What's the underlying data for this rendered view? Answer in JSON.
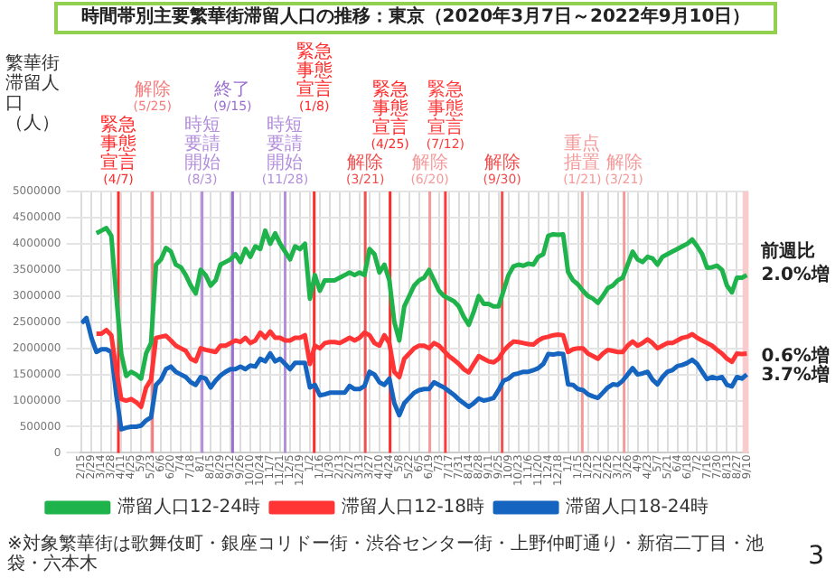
{
  "chart_data": {
    "type": "line",
    "title": "時間帯別主要繁華街滞留人口の推移：東京（2020年3月7日～2022年9月10日）",
    "ylabel": "繁華街滞留人口（人）",
    "x": [
      "2020-02-15",
      "2020-02-22",
      "2020-02-29",
      "2020-03-07",
      "2020-03-14",
      "2020-03-21",
      "2020-03-28",
      "2020-04-04",
      "2020-04-11",
      "2020-04-18",
      "2020-04-25",
      "2020-05-02",
      "2020-05-09",
      "2020-05-16",
      "2020-05-23",
      "2020-05-30",
      "2020-06-06",
      "2020-06-13",
      "2020-06-20",
      "2020-06-27",
      "2020-07-04",
      "2020-07-11",
      "2020-07-18",
      "2020-07-25",
      "2020-08-01",
      "2020-08-08",
      "2020-08-15",
      "2020-08-22",
      "2020-08-29",
      "2020-09-05",
      "2020-09-12",
      "2020-09-19",
      "2020-09-26",
      "2020-10-03",
      "2020-10-10",
      "2020-10-17",
      "2020-10-24",
      "2020-10-31",
      "2020-11-07",
      "2020-11-14",
      "2020-11-21",
      "2020-11-28",
      "2020-12-05",
      "2020-12-12",
      "2020-12-19",
      "2020-12-26",
      "2021-01-02",
      "2021-01-09",
      "2021-01-16",
      "2021-01-23",
      "2021-01-30",
      "2021-02-06",
      "2021-02-13",
      "2021-02-20",
      "2021-02-27",
      "2021-03-06",
      "2021-03-13",
      "2021-03-20",
      "2021-03-27",
      "2021-04-03",
      "2021-04-10",
      "2021-04-17",
      "2021-04-24",
      "2021-05-01",
      "2021-05-08",
      "2021-05-15",
      "2021-05-22",
      "2021-05-29",
      "2021-06-05",
      "2021-06-12",
      "2021-06-19",
      "2021-06-26",
      "2021-07-03",
      "2021-07-10",
      "2021-07-17",
      "2021-07-24",
      "2021-07-31",
      "2021-08-07",
      "2021-08-14",
      "2021-08-21",
      "2021-08-28",
      "2021-09-04",
      "2021-09-11",
      "2021-09-18",
      "2021-09-25",
      "2021-10-02",
      "2021-10-09",
      "2021-10-16",
      "2021-10-23",
      "2021-10-30",
      "2021-11-06",
      "2021-11-13",
      "2021-11-20",
      "2021-11-27",
      "2021-12-04",
      "2021-12-11",
      "2021-12-18",
      "2021-12-25",
      "2022-01-01",
      "2022-01-08",
      "2022-01-15",
      "2022-01-22",
      "2022-01-29",
      "2022-02-05",
      "2022-02-12",
      "2022-02-19",
      "2022-02-26",
      "2022-03-05",
      "2022-03-12",
      "2022-03-19",
      "2022-03-26",
      "2022-04-02",
      "2022-04-09",
      "2022-04-16",
      "2022-04-23",
      "2022-04-30",
      "2022-05-07",
      "2022-05-14",
      "2022-05-21",
      "2022-05-28",
      "2022-06-04",
      "2022-06-11",
      "2022-06-18",
      "2022-06-25",
      "2022-07-02",
      "2022-07-09",
      "2022-07-16",
      "2022-07-23",
      "2022-07-30",
      "2022-08-06",
      "2022-08-13",
      "2022-08-20",
      "2022-08-27",
      "2022-09-03",
      "2022-09-10"
    ],
    "series": [
      {
        "name": "滞留人口12-24時",
        "color": "#1fb34b",
        "values": [
          null,
          null,
          null,
          4200000,
          4250000,
          4300000,
          4150000,
          3000000,
          1900000,
          1470000,
          1550000,
          1500000,
          1420000,
          1900000,
          2100000,
          3600000,
          3700000,
          3920000,
          3850000,
          3600000,
          3550000,
          3400000,
          3200000,
          3050000,
          3500000,
          3400000,
          3200000,
          3300000,
          3600000,
          3650000,
          3700000,
          3800000,
          3650000,
          3900000,
          3750000,
          3950000,
          3900000,
          4250000,
          4000000,
          4200000,
          4000000,
          3850000,
          3700000,
          3950000,
          3900000,
          4000000,
          2950000,
          3400000,
          3100000,
          3300000,
          3300000,
          3300000,
          3350000,
          3400000,
          3450000,
          3400000,
          3450000,
          3400000,
          3900000,
          3800000,
          3450000,
          3600000,
          3300000,
          2500000,
          2150000,
          2800000,
          3000000,
          3200000,
          3300000,
          3350000,
          3500000,
          3300000,
          3100000,
          3000000,
          2950000,
          2900000,
          2800000,
          2600000,
          2450000,
          2700000,
          3000000,
          2850000,
          2850000,
          2800000,
          2800000,
          3100000,
          3400000,
          3570000,
          3600000,
          3580000,
          3620000,
          3600000,
          3750000,
          3800000,
          4150000,
          4180000,
          4170000,
          4180000,
          3460000,
          3300000,
          3220000,
          3100000,
          3000000,
          2950000,
          2870000,
          3000000,
          3150000,
          3200000,
          3300000,
          3350000,
          3600000,
          3850000,
          3700000,
          3650000,
          3750000,
          3720000,
          3600000,
          3750000,
          3800000,
          3850000,
          3900000,
          3950000,
          4000000,
          4080000,
          3950000,
          3800000,
          3540000,
          3550000,
          3580000,
          3500000,
          3200000,
          3070000,
          3350000,
          3350000,
          3400000
        ]
      },
      {
        "name": "滞留人口12-18時",
        "color": "#ff3535",
        "values": [
          null,
          null,
          null,
          2280000,
          2280000,
          2350000,
          2250000,
          1580000,
          1030000,
          1000000,
          1030000,
          970000,
          880000,
          1250000,
          1400000,
          2200000,
          2220000,
          2240000,
          2150000,
          2050000,
          2000000,
          1950000,
          1800000,
          1750000,
          2000000,
          1970000,
          1950000,
          1930000,
          2050000,
          2050000,
          2100000,
          2150000,
          2120000,
          2200000,
          2100000,
          2150000,
          2300000,
          2200000,
          2320000,
          2200000,
          2200000,
          2150000,
          2150000,
          2200000,
          2200000,
          2250000,
          1700000,
          2050000,
          2000000,
          2100000,
          2120000,
          2120000,
          2100000,
          2150000,
          2200000,
          2150000,
          2200000,
          2300000,
          2250000,
          2100000,
          2050000,
          2250000,
          2100000,
          1550000,
          1450000,
          1800000,
          1900000,
          2000000,
          2050000,
          2050000,
          2000000,
          2100000,
          2050000,
          1950000,
          1850000,
          1780000,
          1700000,
          1600000,
          1540000,
          1700000,
          1850000,
          1800000,
          1750000,
          1730000,
          1800000,
          1950000,
          2050000,
          2130000,
          2120000,
          2100000,
          2080000,
          2070000,
          2150000,
          2200000,
          2220000,
          2250000,
          2260000,
          2250000,
          1930000,
          1980000,
          2000000,
          2000000,
          1900000,
          1850000,
          1800000,
          1900000,
          1970000,
          1950000,
          1930000,
          1930000,
          2050000,
          2130000,
          2050000,
          2100000,
          2170000,
          2100000,
          2000000,
          2050000,
          2100000,
          2100000,
          2150000,
          2200000,
          2220000,
          2270000,
          2200000,
          2150000,
          2100000,
          2050000,
          1970000,
          1900000,
          1800000,
          1740000,
          1900000,
          1890000,
          1900000
        ]
      },
      {
        "name": "滞留人口18-24時",
        "color": "#1565c0",
        "values": [
          2480000,
          2580000,
          2200000,
          1930000,
          1980000,
          1980000,
          1930000,
          1100000,
          450000,
          480000,
          500000,
          500000,
          520000,
          620000,
          680000,
          1300000,
          1400000,
          1600000,
          1650000,
          1550000,
          1500000,
          1450000,
          1350000,
          1300000,
          1450000,
          1420000,
          1250000,
          1380000,
          1480000,
          1550000,
          1600000,
          1600000,
          1650000,
          1600000,
          1670000,
          1650000,
          1800000,
          1750000,
          1900000,
          1750000,
          1800000,
          1700000,
          1600000,
          1720000,
          1720000,
          1720000,
          1250000,
          1300000,
          1100000,
          1120000,
          1150000,
          1150000,
          1150000,
          1150000,
          1280000,
          1220000,
          1220000,
          1280000,
          1550000,
          1500000,
          1350000,
          1300000,
          1420000,
          950000,
          720000,
          950000,
          1050000,
          1150000,
          1200000,
          1220000,
          1220000,
          1350000,
          1300000,
          1250000,
          1180000,
          1110000,
          1020000,
          950000,
          880000,
          950000,
          1040000,
          1000000,
          1020000,
          1050000,
          1200000,
          1380000,
          1420000,
          1500000,
          1520000,
          1550000,
          1550000,
          1580000,
          1620000,
          1700000,
          1890000,
          1880000,
          1900000,
          1890000,
          1310000,
          1300000,
          1220000,
          1200000,
          1120000,
          1080000,
          1050000,
          1150000,
          1250000,
          1310000,
          1300000,
          1380000,
          1500000,
          1620000,
          1500000,
          1520000,
          1550000,
          1400000,
          1310000,
          1450000,
          1550000,
          1580000,
          1660000,
          1680000,
          1720000,
          1780000,
          1700000,
          1550000,
          1410000,
          1450000,
          1420000,
          1450000,
          1300000,
          1270000,
          1450000,
          1420000,
          1500000
        ]
      }
    ],
    "xlim": [
      "2020-02-14",
      "2022-09-12"
    ],
    "xticks": [
      {
        "value": "2020-02-15",
        "label": "2/15"
      },
      {
        "value": "2020-02-29",
        "label": "2/29"
      },
      {
        "value": "2020-03-14",
        "label": "3/14"
      },
      {
        "value": "2020-03-28",
        "label": "3/28"
      },
      {
        "value": "2020-04-11",
        "label": "4/11"
      },
      {
        "value": "2020-04-25",
        "label": "4/25"
      },
      {
        "value": "2020-05-09",
        "label": "5/9"
      },
      {
        "value": "2020-05-23",
        "label": "5/23"
      },
      {
        "value": "2020-06-06",
        "label": "6/6"
      },
      {
        "value": "2020-06-20",
        "label": "6/20"
      },
      {
        "value": "2020-07-04",
        "label": "7/4"
      },
      {
        "value": "2020-07-18",
        "label": "7/18"
      },
      {
        "value": "2020-08-01",
        "label": "8/1"
      },
      {
        "value": "2020-08-15",
        "label": "8/15"
      },
      {
        "value": "2020-08-29",
        "label": "8/29"
      },
      {
        "value": "2020-09-12",
        "label": "9/12"
      },
      {
        "value": "2020-09-26",
        "label": "9/26"
      },
      {
        "value": "2020-10-10",
        "label": "10/10"
      },
      {
        "value": "2020-10-24",
        "label": "10/24"
      },
      {
        "value": "2020-11-07",
        "label": "11/7"
      },
      {
        "value": "2020-11-21",
        "label": "11/21"
      },
      {
        "value": "2020-12-05",
        "label": "12/5"
      },
      {
        "value": "2020-12-19",
        "label": "12/19"
      },
      {
        "value": "2021-01-02",
        "label": "1/2"
      },
      {
        "value": "2021-01-16",
        "label": "1/16"
      },
      {
        "value": "2021-01-30",
        "label": "1/30"
      },
      {
        "value": "2021-02-13",
        "label": "2/13"
      },
      {
        "value": "2021-02-27",
        "label": "2/27"
      },
      {
        "value": "2021-03-13",
        "label": "3/13"
      },
      {
        "value": "2021-03-27",
        "label": "3/27"
      },
      {
        "value": "2021-04-10",
        "label": "4/10"
      },
      {
        "value": "2021-04-24",
        "label": "4/24"
      },
      {
        "value": "2021-05-08",
        "label": "5/8"
      },
      {
        "value": "2021-05-22",
        "label": "5/22"
      },
      {
        "value": "2021-06-05",
        "label": "6/5"
      },
      {
        "value": "2021-06-19",
        "label": "6/19"
      },
      {
        "value": "2021-07-03",
        "label": "7/3"
      },
      {
        "value": "2021-07-17",
        "label": "7/17"
      },
      {
        "value": "2021-07-31",
        "label": "7/31"
      },
      {
        "value": "2021-08-14",
        "label": "8/14"
      },
      {
        "value": "2021-08-28",
        "label": "8/28"
      },
      {
        "value": "2021-09-11",
        "label": "9/11"
      },
      {
        "value": "2021-09-25",
        "label": "9/25"
      },
      {
        "value": "2021-10-09",
        "label": "10/9"
      },
      {
        "value": "2021-10-23",
        "label": "10/23"
      },
      {
        "value": "2021-11-06",
        "label": "11/6"
      },
      {
        "value": "2021-11-20",
        "label": "11/20"
      },
      {
        "value": "2021-12-04",
        "label": "12/4"
      },
      {
        "value": "2021-12-18",
        "label": "12/18"
      },
      {
        "value": "2022-01-01",
        "label": "1/1"
      },
      {
        "value": "2022-01-15",
        "label": "1/15"
      },
      {
        "value": "2022-01-29",
        "label": "1/29"
      },
      {
        "value": "2022-02-12",
        "label": "2/12"
      },
      {
        "value": "2022-02-26",
        "label": "2/26"
      },
      {
        "value": "2022-03-12",
        "label": "3/12"
      },
      {
        "value": "2022-03-26",
        "label": "3/26"
      },
      {
        "value": "2022-04-09",
        "label": "4/9"
      },
      {
        "value": "2022-04-23",
        "label": "4/23"
      },
      {
        "value": "2022-05-07",
        "label": "5/7"
      },
      {
        "value": "2022-05-21",
        "label": "5/21"
      },
      {
        "value": "2022-06-04",
        "label": "6/4"
      },
      {
        "value": "2022-06-18",
        "label": "6/18"
      },
      {
        "value": "2022-07-02",
        "label": "7/2"
      },
      {
        "value": "2022-07-16",
        "label": "7/16"
      },
      {
        "value": "2022-07-30",
        "label": "7/30"
      },
      {
        "value": "2022-08-13",
        "label": "8/13"
      },
      {
        "value": "2022-08-27",
        "label": "8/27"
      },
      {
        "value": "2022-09-10",
        "label": "9/10"
      }
    ],
    "ylim": [
      0,
      5000000
    ],
    "yticks": [
      0,
      500000,
      1000000,
      1500000,
      2000000,
      2500000,
      3000000,
      3500000,
      4000000,
      4500000,
      5000000
    ],
    "grid": true,
    "legend": "bottom",
    "ref_lines": [
      {
        "axis": "x",
        "value": "2020-04-07",
        "label": "緊急事態宣言(4/7)",
        "color": "#ff2a2a"
      },
      {
        "axis": "x",
        "value": "2020-05-25",
        "label": "解除(5/25)",
        "color": "#f47c7c"
      },
      {
        "axis": "x",
        "value": "2020-08-03",
        "label": "時短要請開始(8/3)",
        "color": "#b48fdc"
      },
      {
        "axis": "x",
        "value": "2020-09-15",
        "label": "終了(9/15)",
        "color": "#9a6fd0"
      },
      {
        "axis": "x",
        "value": "2020-11-28",
        "label": "時短要請開始(11/28)",
        "color": "#b48fdc"
      },
      {
        "axis": "x",
        "value": "2021-01-08",
        "label": "緊急事態宣言(1/8)",
        "color": "#ff2a2a"
      },
      {
        "axis": "x",
        "value": "2021-03-21",
        "label": "解除(3/21)",
        "color": "#f05050"
      },
      {
        "axis": "x",
        "value": "2021-04-25",
        "label": "緊急事態宣言(4/25)",
        "color": "#ff2a2a"
      },
      {
        "axis": "x",
        "value": "2021-06-20",
        "label": "解除(6/20)",
        "color": "#f49a9a"
      },
      {
        "axis": "x",
        "value": "2021-07-12",
        "label": "緊急事態宣言(7/12)",
        "color": "#ff3a3a"
      },
      {
        "axis": "x",
        "value": "2021-09-30",
        "label": "解除(9/30)",
        "color": "#f05050"
      },
      {
        "axis": "x",
        "value": "2022-01-21",
        "label": "重点措置(1/21)",
        "color": "#f49a9a"
      },
      {
        "axis": "x",
        "value": "2022-03-21",
        "label": "解除(3/21)",
        "color": "#f49a9a"
      }
    ],
    "bands": [
      {
        "axis": "x",
        "from": "2022-09-04",
        "to": "2022-09-10",
        "color": "#f8cccc"
      }
    ],
    "annotations": [
      {
        "text": "前週比",
        "x": "2022-09-10",
        "y": 3850000
      },
      {
        "text": "2.0%増",
        "x": "2022-09-10",
        "y": 3400000
      },
      {
        "text": "0.6%増",
        "x": "2022-09-10",
        "y": 1850000
      },
      {
        "text": "3.7%増",
        "x": "2022-09-10",
        "y": 1480000
      },
      "※対象繁華街は歌舞伎町・銀座コリドー街・渋谷センター街・上野仲町通り・新宿二丁目・池袋・六本木",
      "3"
    ]
  }
}
